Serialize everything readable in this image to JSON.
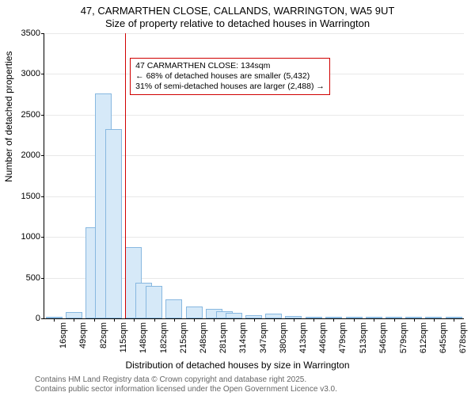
{
  "title": {
    "line1": "47, CARMARTHEN CLOSE, CALLANDS, WARRINGTON, WA5 9UT",
    "line2": "Size of property relative to detached houses in Warrington"
  },
  "ylabel": "Number of detached properties",
  "xlabel": "Distribution of detached houses by size in Warrington",
  "footer": {
    "line1": "Contains HM Land Registry data © Crown copyright and database right 2025.",
    "line2": "Contains public sector information licensed under the Open Government Licence v3.0."
  },
  "chart": {
    "type": "histogram",
    "ylim": [
      0,
      3500
    ],
    "yticks": [
      0,
      500,
      1000,
      1500,
      2000,
      2500,
      3000,
      3500
    ],
    "xticks": [
      "16sqm",
      "49sqm",
      "82sqm",
      "115sqm",
      "148sqm",
      "182sqm",
      "215sqm",
      "248sqm",
      "281sqm",
      "314sqm",
      "347sqm",
      "380sqm",
      "413sqm",
      "446sqm",
      "479sqm",
      "513sqm",
      "546sqm",
      "579sqm",
      "612sqm",
      "645sqm",
      "678sqm"
    ],
    "bars": [
      {
        "x_sqm": 16,
        "value": 20
      },
      {
        "x_sqm": 49,
        "value": 80
      },
      {
        "x_sqm": 82,
        "value": 1120
      },
      {
        "x_sqm": 98,
        "value": 2760
      },
      {
        "x_sqm": 115,
        "value": 2320
      },
      {
        "x_sqm": 148,
        "value": 880
      },
      {
        "x_sqm": 165,
        "value": 440
      },
      {
        "x_sqm": 182,
        "value": 400
      },
      {
        "x_sqm": 215,
        "value": 230
      },
      {
        "x_sqm": 248,
        "value": 150
      },
      {
        "x_sqm": 281,
        "value": 120
      },
      {
        "x_sqm": 298,
        "value": 90
      },
      {
        "x_sqm": 314,
        "value": 70
      },
      {
        "x_sqm": 347,
        "value": 40
      },
      {
        "x_sqm": 380,
        "value": 60
      },
      {
        "x_sqm": 413,
        "value": 30
      },
      {
        "x_sqm": 446,
        "value": 20
      },
      {
        "x_sqm": 479,
        "value": 15
      },
      {
        "x_sqm": 513,
        "value": 10
      },
      {
        "x_sqm": 546,
        "value": 8
      },
      {
        "x_sqm": 579,
        "value": 6
      },
      {
        "x_sqm": 612,
        "value": 5
      },
      {
        "x_sqm": 645,
        "value": 4
      },
      {
        "x_sqm": 678,
        "value": 3
      }
    ],
    "x_domain": [
      0,
      695
    ],
    "bar_fill": "#d6e9f8",
    "bar_stroke": "#88b8e0",
    "grid_color": "#e8e8e8",
    "background": "#ffffff",
    "reference_line": {
      "x_sqm": 134,
      "color": "#d00000"
    },
    "callout": {
      "line1": "47 CARMARTHEN CLOSE: 134sqm",
      "line2": "← 68% of detached houses are smaller (5,432)",
      "line3": "31% of semi-detached houses are larger (2,488) →",
      "border_color": "#d00000"
    }
  }
}
